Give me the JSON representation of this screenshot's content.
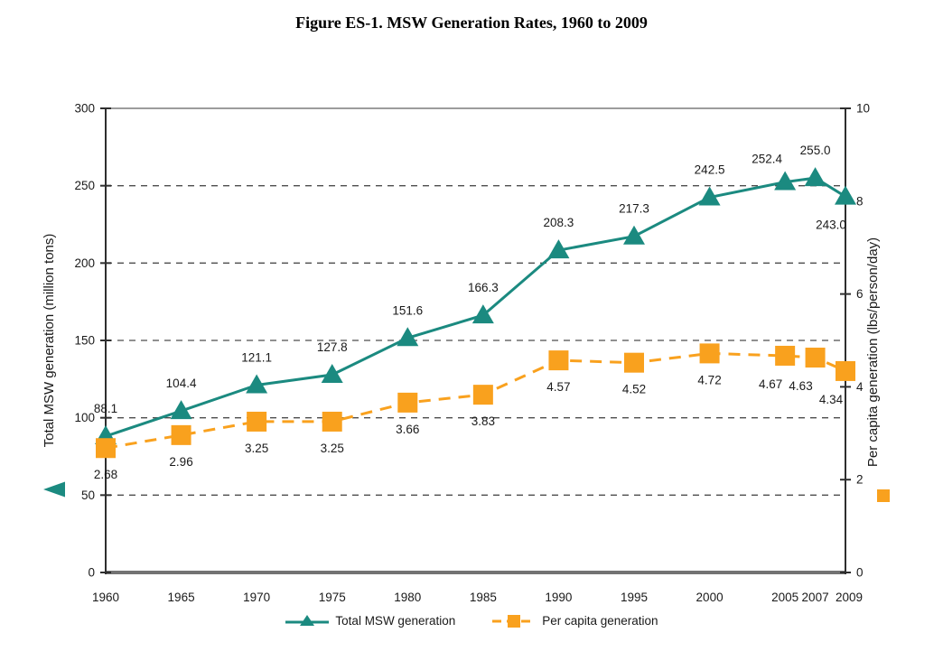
{
  "title": "Figure ES-1. MSW Generation Rates, 1960 to 2009",
  "chart_data": {
    "type": "line",
    "title": "Figure ES-1. MSW Generation Rates, 1960 to 2009",
    "x": [
      1960,
      1965,
      1970,
      1975,
      1980,
      1985,
      1990,
      1995,
      2000,
      2005,
      2007,
      2009
    ],
    "x_tick_labels": [
      "1960",
      "1965",
      "1970",
      "1975",
      "1980",
      "1985",
      "1990",
      "1995",
      "2000",
      "2005",
      "2007",
      "2009"
    ],
    "left_axis": {
      "label": "Total MSW generation (million tons)",
      "min": 0,
      "max": 300,
      "tick_step": 50,
      "ticks": [
        "0",
        "50",
        "100",
        "150",
        "200",
        "250",
        "300"
      ]
    },
    "right_axis": {
      "label": "Per capita generation (lbs/person/day)",
      "min": 0,
      "max": 10,
      "tick_step": 2,
      "ticks": [
        "0",
        "2",
        "4",
        "6",
        "8",
        "10"
      ]
    },
    "grid": "horizontal-dashed",
    "legend_position": "bottom",
    "series": [
      {
        "name": "Total MSW generation",
        "axis": "left",
        "color": "#1B8A80",
        "marker": "triangle",
        "line_style": "solid",
        "values": [
          88.1,
          104.4,
          121.1,
          127.8,
          151.6,
          166.3,
          208.3,
          217.3,
          242.5,
          252.4,
          255.0,
          243.0
        ],
        "labels": [
          "88.1",
          "104.4",
          "121.1",
          "127.8",
          "151.6",
          "166.3",
          "208.3",
          "217.3",
          "242.5",
          "252.4",
          "255.0",
          "243.0"
        ],
        "label_placements": [
          "above",
          "above",
          "above",
          "above",
          "above",
          "above",
          "above",
          "above",
          "above",
          "above-left",
          "above",
          "below-left"
        ]
      },
      {
        "name": "Per capita generation",
        "axis": "right",
        "color": "#F9A11E",
        "marker": "square",
        "line_style": "dashed",
        "values": [
          2.68,
          2.96,
          3.25,
          3.25,
          3.66,
          3.83,
          4.57,
          4.52,
          4.72,
          4.67,
          4.63,
          4.34
        ],
        "labels": [
          "2.68",
          "2.96",
          "3.25",
          "3.25",
          "3.66",
          "3.83",
          "4.57",
          "4.52",
          "4.72",
          "4.67",
          "4.63",
          "4.34"
        ],
        "label_placements": [
          "below",
          "below",
          "below",
          "below",
          "below",
          "below",
          "below",
          "below",
          "below",
          "below-left",
          "below-left",
          "below-left"
        ]
      }
    ]
  }
}
